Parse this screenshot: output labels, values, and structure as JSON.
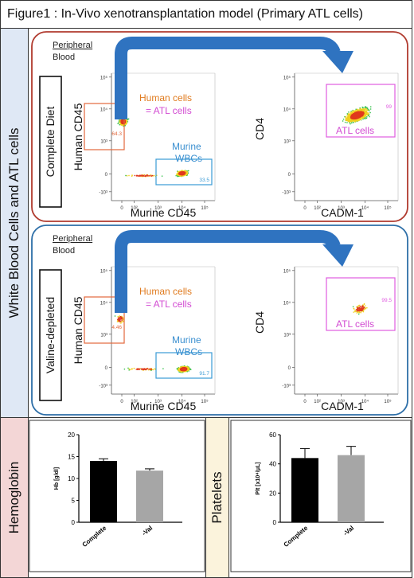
{
  "figure_title": "Figure1 : In-Vivo xenotransplantation model (Primary ATL cells)",
  "side_label": "White Blood Cells and ATL cells",
  "panels": [
    {
      "condition": "Complete Diet",
      "border_color": "#b03a2e",
      "peripheral": [
        "Peripheral",
        "Blood"
      ],
      "plot1": {
        "ylabel": "Human CD45",
        "xlabel": "Murine CD45",
        "gate_human": "64.3",
        "gate_murine": "33.5"
      },
      "human_cells": "Human cells",
      "eq_atl": "= ATL cells",
      "murine": [
        "Murine",
        "WBCs"
      ],
      "plot2": {
        "ylabel": "CD4",
        "xlabel": "CADM-1",
        "gate_atl": "99",
        "atl_label": "ATL cells"
      }
    },
    {
      "condition": "Valine-depleted",
      "border_color": "#2e6fa8",
      "peripheral": [
        "Peripheral",
        "Blood"
      ],
      "plot1": {
        "ylabel": "Human CD45",
        "xlabel": "Murine CD45",
        "gate_human": "4.46",
        "gate_murine": "91.7"
      },
      "human_cells": "Human cells",
      "eq_atl": "= ATL cells",
      "murine": [
        "Murine",
        "WBCs"
      ],
      "plot2": {
        "ylabel": "CD4",
        "xlabel": "CADM-1",
        "gate_atl": "99.5",
        "atl_label": "ATL cells"
      }
    }
  ],
  "flow_axis_ticks": {
    "y": [
      "10⁵",
      "10⁴",
      "10³",
      "0",
      "-10³"
    ],
    "x": [
      "0",
      "10²",
      "10³",
      "10⁴",
      "10⁵"
    ]
  },
  "bottom": {
    "hemoglobin_label": "Hemoglobin",
    "platelets_label": "Platelets"
  },
  "colors": {
    "human_gate": "#e2683c",
    "murine_gate": "#3a9bd5",
    "atl_gate": "#e05ce0",
    "arrow": "#2f73c0",
    "human_text": "#e07b1f",
    "atl_text": "#d24bd2",
    "murine_text": "#3a8fd0",
    "hb_bg": "#f3d6d6",
    "plt_bg": "#fbf3dc"
  },
  "chart_data": [
    {
      "type": "bar",
      "ylabel": "Hb [g/dl]",
      "categories": [
        "Complete",
        "-Val"
      ],
      "values": [
        14.0,
        11.8
      ],
      "errors": [
        0.5,
        0.4
      ],
      "bar_colors": [
        "#000000",
        "#a6a6a6"
      ],
      "ylim": [
        0,
        20
      ],
      "yticks": [
        "0",
        "5",
        "10",
        "15",
        "20"
      ]
    },
    {
      "type": "bar",
      "ylabel": "Plt [x10⁴/μL]",
      "categories": [
        "Complete",
        "-Val"
      ],
      "values": [
        44,
        46
      ],
      "errors": [
        6.5,
        6
      ],
      "bar_colors": [
        "#000000",
        "#a6a6a6"
      ],
      "ylim": [
        0,
        60
      ],
      "yticks": [
        "0",
        "20",
        "40",
        "60"
      ]
    }
  ]
}
